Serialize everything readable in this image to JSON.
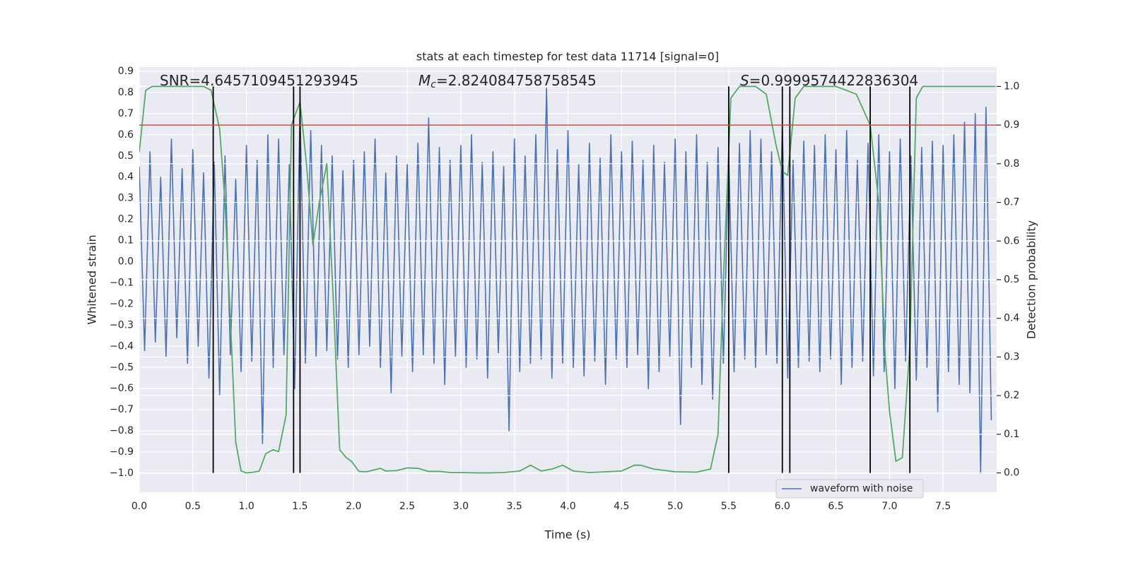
{
  "chart_data": {
    "type": "line",
    "title": "stats at each timestep for test data 11714 [signal=0]",
    "xlabel": "Time (s)",
    "ylabel": "Whitened strain",
    "y2label": "Detection probability",
    "xlim": [
      0,
      8
    ],
    "ylim": [
      -1.09,
      0.92
    ],
    "y2lim": [
      -0.05,
      1.05
    ],
    "xticks": [
      {
        "value": 0,
        "label": "0.0"
      },
      0.5,
      {
        "value": 1,
        "label": "1.0"
      },
      1.5,
      {
        "value": 2,
        "label": "2.0"
      },
      2.5,
      {
        "value": 3,
        "label": "3.0"
      },
      3.5,
      {
        "value": 4,
        "label": "4.0"
      },
      4.5,
      {
        "value": 5,
        "label": "5.0"
      },
      5.5,
      {
        "value": 6,
        "label": "6.0"
      },
      6.5,
      {
        "value": 7,
        "label": "7.0"
      },
      7.5
    ],
    "yticks": [
      {
        "value": -1.0,
        "label": "−1.0"
      },
      {
        "value": -0.9,
        "label": "−0.9"
      },
      {
        "value": -0.8,
        "label": "−0.8"
      },
      {
        "value": -0.7,
        "label": "−0.7"
      },
      {
        "value": -0.6,
        "label": "−0.6"
      },
      {
        "value": -0.5,
        "label": "−0.5"
      },
      {
        "value": -0.4,
        "label": "−0.4"
      },
      {
        "value": -0.3,
        "label": "−0.3"
      },
      {
        "value": -0.2,
        "label": "−0.2"
      },
      {
        "value": -0.1,
        "label": "−0.1"
      },
      {
        "value": 0,
        "label": "0.0"
      },
      0.1,
      0.2,
      0.3,
      0.4,
      0.5,
      0.6,
      0.7,
      0.8,
      0.9
    ],
    "y2ticks": [
      {
        "value": 0,
        "label": "0.0"
      },
      0.1,
      0.2,
      0.3,
      0.4,
      0.5,
      0.6,
      0.7,
      0.8,
      0.9,
      {
        "value": 1,
        "label": "1.0"
      }
    ],
    "grid": true,
    "legend": "lower right",
    "series": [
      {
        "name": "waveform with noise",
        "color": "#4c72b0",
        "x": [
          0,
          0.05,
          0.1,
          0.15,
          0.2,
          0.25,
          0.3,
          0.35,
          0.4,
          0.45,
          0.5,
          0.55,
          0.6,
          0.65,
          0.7,
          0.75,
          0.8,
          0.85,
          0.9,
          0.95,
          1,
          1.05,
          1.1,
          1.15,
          1.2,
          1.25,
          1.3,
          1.35,
          1.4,
          1.45,
          1.5,
          1.55,
          1.6,
          1.65,
          1.7,
          1.75,
          1.8,
          1.85,
          1.9,
          1.95,
          2,
          2.05,
          2.1,
          2.15,
          2.2,
          2.25,
          2.3,
          2.35,
          2.4,
          2.45,
          2.5,
          2.55,
          2.6,
          2.65,
          2.7,
          2.75,
          2.8,
          2.85,
          2.9,
          2.95,
          3,
          3.05,
          3.1,
          3.15,
          3.2,
          3.25,
          3.3,
          3.35,
          3.4,
          3.45,
          3.5,
          3.55,
          3.6,
          3.65,
          3.7,
          3.75,
          3.8,
          3.85,
          3.9,
          3.95,
          4,
          4.05,
          4.1,
          4.15,
          4.2,
          4.25,
          4.3,
          4.35,
          4.4,
          4.45,
          4.5,
          4.55,
          4.6,
          4.65,
          4.7,
          4.75,
          4.8,
          4.85,
          4.9,
          4.95,
          5,
          5.05,
          5.1,
          5.15,
          5.2,
          5.25,
          5.3,
          5.35,
          5.4,
          5.45,
          5.5,
          5.55,
          5.6,
          5.65,
          5.7,
          5.75,
          5.8,
          5.85,
          5.9,
          5.95,
          6,
          6.05,
          6.1,
          6.15,
          6.2,
          6.25,
          6.3,
          6.35,
          6.4,
          6.45,
          6.5,
          6.55,
          6.6,
          6.65,
          6.7,
          6.75,
          6.8,
          6.85,
          6.9,
          6.95,
          7,
          7.05,
          7.1,
          7.15,
          7.2,
          7.25,
          7.3,
          7.35,
          7.4,
          7.45,
          7.5,
          7.55,
          7.6,
          7.65,
          7.7,
          7.75,
          7.8,
          7.85,
          7.9,
          7.95
        ],
        "values": [
          0.45,
          -0.42,
          0.52,
          -0.38,
          0.4,
          -0.45,
          0.58,
          -0.36,
          0.44,
          -0.48,
          0.53,
          -0.4,
          0.42,
          -0.55,
          0.47,
          -0.63,
          0.5,
          -0.44,
          0.39,
          -0.52,
          0.55,
          -0.47,
          0.48,
          -0.86,
          0.6,
          -0.5,
          0.58,
          -0.44,
          0.46,
          -0.6,
          0.72,
          -0.48,
          0.62,
          -0.45,
          0.55,
          -0.42,
          0.5,
          -0.46,
          0.43,
          -0.5,
          0.48,
          -0.44,
          0.52,
          -0.4,
          0.58,
          -0.5,
          0.42,
          -0.62,
          0.5,
          -0.45,
          0.46,
          -0.52,
          0.56,
          -0.44,
          0.68,
          -0.48,
          0.54,
          -0.58,
          0.48,
          -0.45,
          0.55,
          -0.5,
          0.6,
          -0.46,
          0.47,
          -0.55,
          0.52,
          -0.43,
          0.45,
          -0.8,
          0.58,
          -0.52,
          0.5,
          -0.48,
          0.6,
          -0.46,
          0.82,
          -0.55,
          0.53,
          -0.48,
          0.62,
          -0.5,
          0.46,
          -0.54,
          0.56,
          -0.47,
          0.49,
          -0.58,
          0.6,
          -0.46,
          0.52,
          -0.5,
          0.57,
          -0.44,
          0.48,
          -0.6,
          0.55,
          -0.52,
          0.47,
          -0.45,
          0.58,
          -0.77,
          0.52,
          -0.5,
          0.6,
          -0.58,
          0.47,
          -0.65,
          0.54,
          -0.48,
          0.5,
          -0.52,
          0.56,
          -0.46,
          0.62,
          -0.5,
          0.58,
          -0.44,
          0.52,
          -0.48,
          0.65,
          -0.55,
          0.48,
          -0.5,
          0.57,
          -0.47,
          0.55,
          -0.52,
          0.6,
          -0.46,
          0.53,
          -0.58,
          0.62,
          -0.5,
          0.48,
          -0.47,
          0.56,
          -0.54,
          0.6,
          -0.52,
          0.52,
          -0.6,
          0.58,
          -0.47,
          0.5,
          -0.56,
          0.54,
          -0.5,
          0.57,
          -0.71,
          0.55,
          -0.52,
          0.6,
          -0.58,
          0.66,
          -0.62,
          0.7,
          -1.0,
          0.73,
          -0.75
        ]
      }
    ],
    "probability": {
      "color": "#55a868",
      "axis": "y2",
      "x": [
        0,
        0.06,
        0.12,
        0.6,
        0.67,
        0.75,
        0.8,
        0.85,
        0.9,
        0.95,
        1,
        1.07,
        1.12,
        1.18,
        1.25,
        1.3,
        1.37,
        1.42,
        1.5,
        1.56,
        1.62,
        1.68,
        1.75,
        1.81,
        1.87,
        1.93,
        1.98,
        2.05,
        2.12,
        2.25,
        2.3,
        2.4,
        2.5,
        2.6,
        2.7,
        2.8,
        2.9,
        3,
        3.2,
        3.4,
        3.55,
        3.65,
        3.75,
        3.85,
        3.95,
        4.05,
        4.2,
        4.5,
        4.62,
        4.68,
        4.8,
        5,
        5.2,
        5.33,
        5.4,
        5.45,
        5.52,
        5.6,
        5.67,
        5.75,
        5.85,
        5.94,
        6,
        6.05,
        6.12,
        6.2,
        6.5,
        6.69,
        6.82,
        6.9,
        6.96,
        7,
        7.06,
        7.12,
        7.19,
        7.25,
        7.31,
        7.5,
        7.99
      ],
      "values": [
        0.83,
        0.99,
        1,
        1,
        0.99,
        0.89,
        0.7,
        0.4,
        0.08,
        0.005,
        0,
        0.002,
        0.005,
        0.05,
        0.06,
        0.055,
        0.15,
        0.9,
        0.96,
        0.8,
        0.59,
        0.7,
        0.8,
        0.45,
        0.06,
        0.04,
        0.03,
        0.004,
        0.003,
        0.012,
        0.005,
        0.006,
        0.013,
        0.012,
        0.004,
        0.004,
        0.001,
        0.001,
        0,
        0.001,
        0.005,
        0.02,
        0.005,
        0.01,
        0.02,
        0.005,
        0.001,
        0.005,
        0.02,
        0.02,
        0.01,
        0.003,
        0.002,
        0.01,
        0.1,
        0.5,
        0.97,
        1,
        1,
        1,
        0.98,
        0.85,
        0.78,
        0.77,
        0.97,
        1,
        1,
        0.98,
        0.9,
        0.7,
        0.3,
        0.16,
        0.03,
        0.04,
        0.33,
        0.97,
        1,
        1,
        1
      ]
    },
    "threshold": {
      "value": 0.9,
      "color": "#c44e52",
      "axis": "y2"
    },
    "detections": {
      "color": "#000000",
      "x": [
        0.69,
        1.44,
        1.5,
        5.5,
        6.0,
        6.07,
        6.82,
        7.19
      ]
    },
    "annotations": [
      {
        "text": "SNR=4.6457109451293945"
      },
      {
        "symbol": "M",
        "subscript": "c",
        "text": "=2.824084758758545"
      },
      {
        "symbol": "S",
        "text": "=0.9999574422836304"
      }
    ]
  }
}
